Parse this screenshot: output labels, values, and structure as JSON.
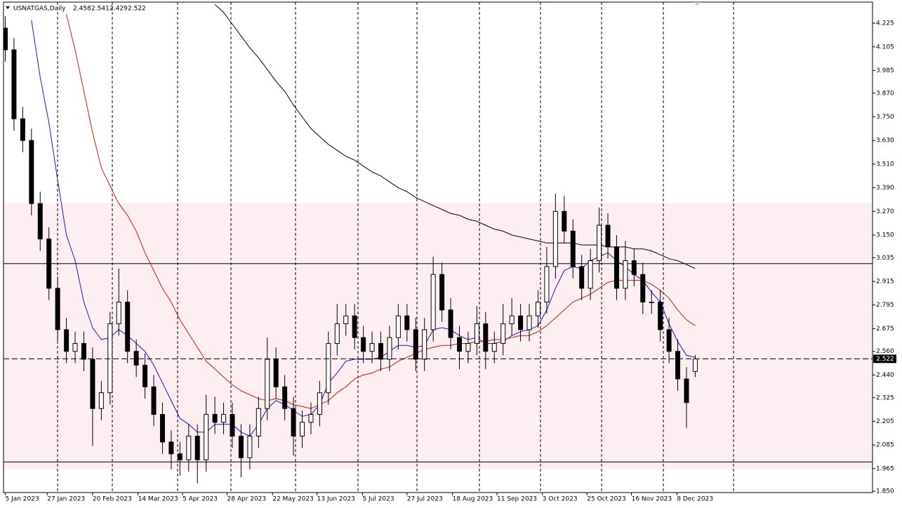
{
  "chart_data": {
    "type": "candlestick",
    "title": "USNATGAS,Daily",
    "xlim": [
      -0.2,
      99.3
    ],
    "ylim": [
      1.8435,
      4.332
    ],
    "xticks": [
      {
        "value": 0,
        "label": "5 Jan 2023"
      },
      {
        "value": 4.8,
        "label": "27 Jan 2023"
      },
      {
        "value": 10,
        "label": "20 Feb 2023"
      },
      {
        "value": 15.2,
        "label": "14 Mar 2023"
      },
      {
        "value": 20.3,
        "label": "5 Apr 2023"
      },
      {
        "value": 25.4,
        "label": "28 Apr 2023"
      },
      {
        "value": 30.6,
        "label": "22 May 2023"
      },
      {
        "value": 35.7,
        "label": "13 Jun 2023"
      },
      {
        "value": 40.9,
        "label": "5 Jul 2023"
      },
      {
        "value": 46,
        "label": "27 Jul 2023"
      },
      {
        "value": 51.2,
        "label": "18 Aug 2023"
      },
      {
        "value": 56.3,
        "label": "11 Sep 2023"
      },
      {
        "value": 61.5,
        "label": "3 Oct 2023"
      },
      {
        "value": 66.6,
        "label": "25 Oct 2023"
      },
      {
        "value": 71.7,
        "label": "16 Nov 2023"
      },
      {
        "value": 76.9,
        "label": "8 Dec 2023"
      }
    ],
    "yticks": [
      4.225,
      4.105,
      3.985,
      {
        "value": 3.87,
        "label": "3.870"
      },
      {
        "value": 3.75,
        "label": "3.750"
      },
      {
        "value": 3.63,
        "label": "3.630"
      },
      {
        "value": 3.51,
        "label": "3.510"
      },
      {
        "value": 3.39,
        "label": "3.390"
      },
      {
        "value": 3.27,
        "label": "3.270"
      },
      {
        "value": 3.15,
        "label": "3.150"
      },
      3.035,
      2.915,
      2.795,
      2.675,
      {
        "value": 2.56,
        "label": "2.560"
      },
      {
        "value": 2.44,
        "label": "2.440"
      },
      2.325,
      2.205,
      2.085,
      1.965,
      {
        "value": 1.85,
        "label": "1.850"
      }
    ],
    "open": [
      4.2,
      4.09,
      3.74,
      3.63,
      3.31,
      3.13,
      2.88,
      2.67,
      2.56,
      2.6,
      2.52,
      2.27,
      2.35,
      2.7,
      2.81,
      2.56,
      2.49,
      2.38,
      2.24,
      2.1,
      2.04,
      2.01,
      2.13,
      2.01,
      2.24,
      2.2,
      2.24,
      2.13,
      2.02,
      2.13,
      2.27,
      2.52,
      2.38,
      2.27,
      2.13,
      2.2,
      2.24,
      2.35,
      2.6,
      2.7,
      2.74,
      2.63,
      2.56,
      2.6,
      2.52,
      2.63,
      2.74,
      2.67,
      2.52,
      2.67,
      2.95,
      2.77,
      2.63,
      2.56,
      2.6,
      2.7,
      2.56,
      2.6,
      2.7,
      2.74,
      2.67,
      2.74,
      2.81,
      2.99,
      3.27,
      3.17,
      2.99,
      2.88,
      3.02,
      3.2,
      3.09,
      2.88,
      3.02,
      2.95,
      2.81,
      2.81,
      2.67,
      2.56,
      2.42,
      2.458
    ],
    "high": [
      4.26,
      4.15,
      3.8,
      3.69,
      3.37,
      3.19,
      2.94,
      2.73,
      2.66,
      2.66,
      2.58,
      2.41,
      2.76,
      2.98,
      2.87,
      2.62,
      2.55,
      2.44,
      2.3,
      2.16,
      2.1,
      2.19,
      2.19,
      2.34,
      2.33,
      2.3,
      2.3,
      2.19,
      2.19,
      2.33,
      2.63,
      2.58,
      2.44,
      2.33,
      2.26,
      2.3,
      2.41,
      2.66,
      2.8,
      2.8,
      2.8,
      2.69,
      2.66,
      2.66,
      2.69,
      2.8,
      2.8,
      2.73,
      2.73,
      3.04,
      3.01,
      2.83,
      2.69,
      2.66,
      2.79,
      2.76,
      2.66,
      2.8,
      2.83,
      2.8,
      2.8,
      2.87,
      3.09,
      3.36,
      3.35,
      3.23,
      3.05,
      3.08,
      3.29,
      3.26,
      3.15,
      3.12,
      3.08,
      3.01,
      2.87,
      2.87,
      2.73,
      2.62,
      2.48,
      2.541
    ],
    "low": [
      4.03,
      3.68,
      3.57,
      3.25,
      3.07,
      2.82,
      2.61,
      2.5,
      2.5,
      2.46,
      2.08,
      2.21,
      2.29,
      2.64,
      2.5,
      2.43,
      2.32,
      2.18,
      2.04,
      1.96,
      1.93,
      1.95,
      1.89,
      1.95,
      2.14,
      2.14,
      2.07,
      1.92,
      1.96,
      2.07,
      2.21,
      2.32,
      2.21,
      2.03,
      2.07,
      2.14,
      2.18,
      2.29,
      2.54,
      2.64,
      2.57,
      2.5,
      2.5,
      2.46,
      2.46,
      2.57,
      2.61,
      2.46,
      2.46,
      2.61,
      2.71,
      2.57,
      2.47,
      2.5,
      2.54,
      2.47,
      2.5,
      2.54,
      2.64,
      2.61,
      2.61,
      2.68,
      2.75,
      2.93,
      3.11,
      2.93,
      2.82,
      2.82,
      2.96,
      3.03,
      2.82,
      2.82,
      2.89,
      2.75,
      2.75,
      2.61,
      2.5,
      2.36,
      2.17,
      2.429
    ],
    "close": [
      4.09,
      3.74,
      3.63,
      3.31,
      3.13,
      2.88,
      2.67,
      2.56,
      2.6,
      2.52,
      2.27,
      2.35,
      2.7,
      2.81,
      2.56,
      2.49,
      2.38,
      2.24,
      2.1,
      2.04,
      2.01,
      2.13,
      2.01,
      2.24,
      2.2,
      2.24,
      2.13,
      2.02,
      2.13,
      2.27,
      2.52,
      2.38,
      2.27,
      2.13,
      2.2,
      2.24,
      2.35,
      2.6,
      2.7,
      2.74,
      2.63,
      2.56,
      2.6,
      2.52,
      2.63,
      2.74,
      2.67,
      2.52,
      2.67,
      2.95,
      2.77,
      2.63,
      2.56,
      2.6,
      2.7,
      2.56,
      2.6,
      2.7,
      2.74,
      2.67,
      2.74,
      2.81,
      2.99,
      3.27,
      3.17,
      2.99,
      2.88,
      3.02,
      3.2,
      3.09,
      2.88,
      3.02,
      2.95,
      2.81,
      2.81,
      2.67,
      2.56,
      2.42,
      2.3,
      2.522
    ],
    "lines": [
      {
        "color": "#1a1ab4",
        "values": [
          null,
          null,
          null,
          4.24,
          3.95,
          3.72,
          3.43,
          3.15,
          3.02,
          2.81,
          2.68,
          2.62,
          2.63,
          2.67,
          2.64,
          2.6,
          2.56,
          2.49,
          2.4,
          2.31,
          2.22,
          2.19,
          2.15,
          2.15,
          2.19,
          2.19,
          2.19,
          2.15,
          2.13,
          2.19,
          2.27,
          2.31,
          2.29,
          2.26,
          2.23,
          2.24,
          2.29,
          2.4,
          2.45,
          2.51,
          2.52,
          2.52,
          2.52,
          2.53,
          2.56,
          2.59,
          2.59,
          2.58,
          2.59,
          2.67,
          2.68,
          2.67,
          2.64,
          2.62,
          2.63,
          2.6,
          2.6,
          2.61,
          2.64,
          2.66,
          2.67,
          2.69,
          2.77,
          2.88,
          2.97,
          2.99,
          2.98,
          3.02,
          3.04,
          3.06,
          3.02,
          2.99,
          2.95,
          2.92,
          2.86,
          2.81,
          2.7,
          2.61,
          2.54,
          2.53
        ]
      },
      {
        "color": "#c81e0a",
        "values": [
          null,
          null,
          null,
          null,
          null,
          null,
          null,
          4.27,
          4.09,
          3.88,
          3.67,
          3.49,
          3.4,
          3.31,
          3.25,
          3.17,
          3.06,
          2.97,
          2.88,
          2.81,
          2.72,
          2.65,
          2.58,
          2.51,
          2.47,
          2.43,
          2.39,
          2.36,
          2.34,
          2.32,
          2.31,
          2.32,
          2.31,
          2.29,
          2.28,
          2.27,
          2.29,
          2.31,
          2.35,
          2.38,
          2.42,
          2.44,
          2.45,
          2.47,
          2.48,
          2.51,
          2.53,
          2.55,
          2.57,
          2.58,
          2.59,
          2.59,
          2.6,
          2.6,
          2.61,
          2.61,
          2.62,
          2.62,
          2.63,
          2.64,
          2.64,
          2.66,
          2.69,
          2.73,
          2.77,
          2.81,
          2.83,
          2.85,
          2.88,
          2.91,
          2.92,
          2.92,
          2.92,
          2.92,
          2.9,
          2.87,
          2.83,
          2.77,
          2.72,
          2.69
        ]
      },
      {
        "color": "#000000",
        "values": [
          null,
          null,
          null,
          null,
          null,
          null,
          null,
          null,
          null,
          null,
          null,
          null,
          null,
          null,
          null,
          null,
          null,
          null,
          null,
          null,
          null,
          null,
          null,
          null,
          4.32,
          4.28,
          4.22,
          4.16,
          4.1,
          4.05,
          3.99,
          3.93,
          3.88,
          3.81,
          3.75,
          3.69,
          3.65,
          3.61,
          3.58,
          3.55,
          3.53,
          3.5,
          3.47,
          3.45,
          3.42,
          3.39,
          3.37,
          3.34,
          3.32,
          3.3,
          3.28,
          3.26,
          3.25,
          3.23,
          3.22,
          3.2,
          3.18,
          3.17,
          3.15,
          3.14,
          3.13,
          3.12,
          3.11,
          3.11,
          3.11,
          3.11,
          3.1,
          3.1,
          3.1,
          3.09,
          3.09,
          3.09,
          3.08,
          3.08,
          3.07,
          3.05,
          3.03,
          3.02,
          3.0,
          2.98
        ]
      }
    ],
    "zone": [
      3.312,
      1.964
    ],
    "levels": [
      3.005,
      1.999
    ],
    "last_price": 2.522
  }
}
